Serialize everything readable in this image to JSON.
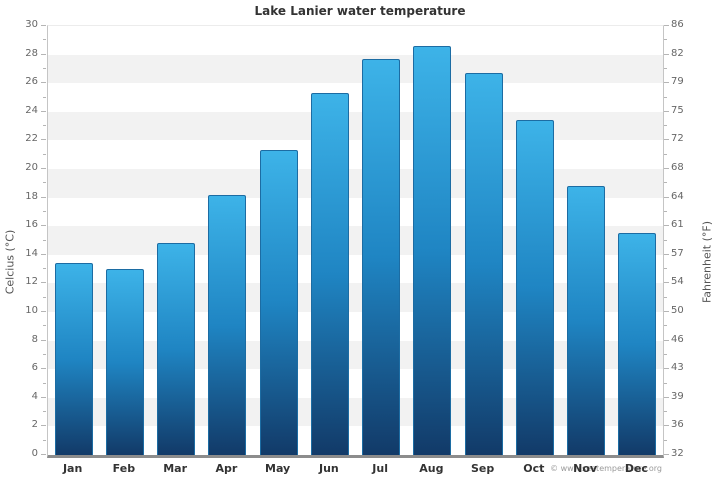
{
  "watermark": "© www.seatemperature.org",
  "chart_data": {
    "type": "bar",
    "title": "Lake Lanier water temperature",
    "categories": [
      "Jan",
      "Feb",
      "Mar",
      "Apr",
      "May",
      "Jun",
      "Jul",
      "Aug",
      "Sep",
      "Oct",
      "Nov",
      "Dec"
    ],
    "values": [
      13.4,
      13.0,
      14.8,
      18.2,
      21.3,
      25.3,
      27.7,
      28.6,
      26.7,
      23.4,
      18.8,
      15.5
    ],
    "series_unit": "°C",
    "ylabel_left": "Celcius (°C)",
    "ylabel_right": "Fahrenheit (°F)",
    "ylim_celsius": [
      0,
      30
    ],
    "yticks_celsius": [
      0,
      2,
      4,
      6,
      8,
      10,
      12,
      14,
      16,
      18,
      20,
      22,
      24,
      26,
      28,
      30
    ],
    "yticks_fahrenheit": [
      32,
      36,
      39,
      43,
      46,
      50,
      54,
      57,
      61,
      64,
      68,
      72,
      75,
      79,
      82,
      86
    ],
    "xlabel": "",
    "legend": "none",
    "grid": "alternating horizontal bands every 2°C",
    "colors": {
      "bar_top": "#3db3e8",
      "bar_mid": "#1f85c3",
      "bar_bottom": "#123a68",
      "bar_border": "#1c6ca3",
      "band_gray": "#f2f2f2",
      "axis_line": "#c5c5c5",
      "baseline": "#8c8c8c",
      "tick_color": "#b5b5b5",
      "tick_label": "#666666",
      "month_label": "#333333",
      "title_color": "#333333",
      "axis_title": "#555555",
      "watermark": "#9a9a9a"
    }
  }
}
